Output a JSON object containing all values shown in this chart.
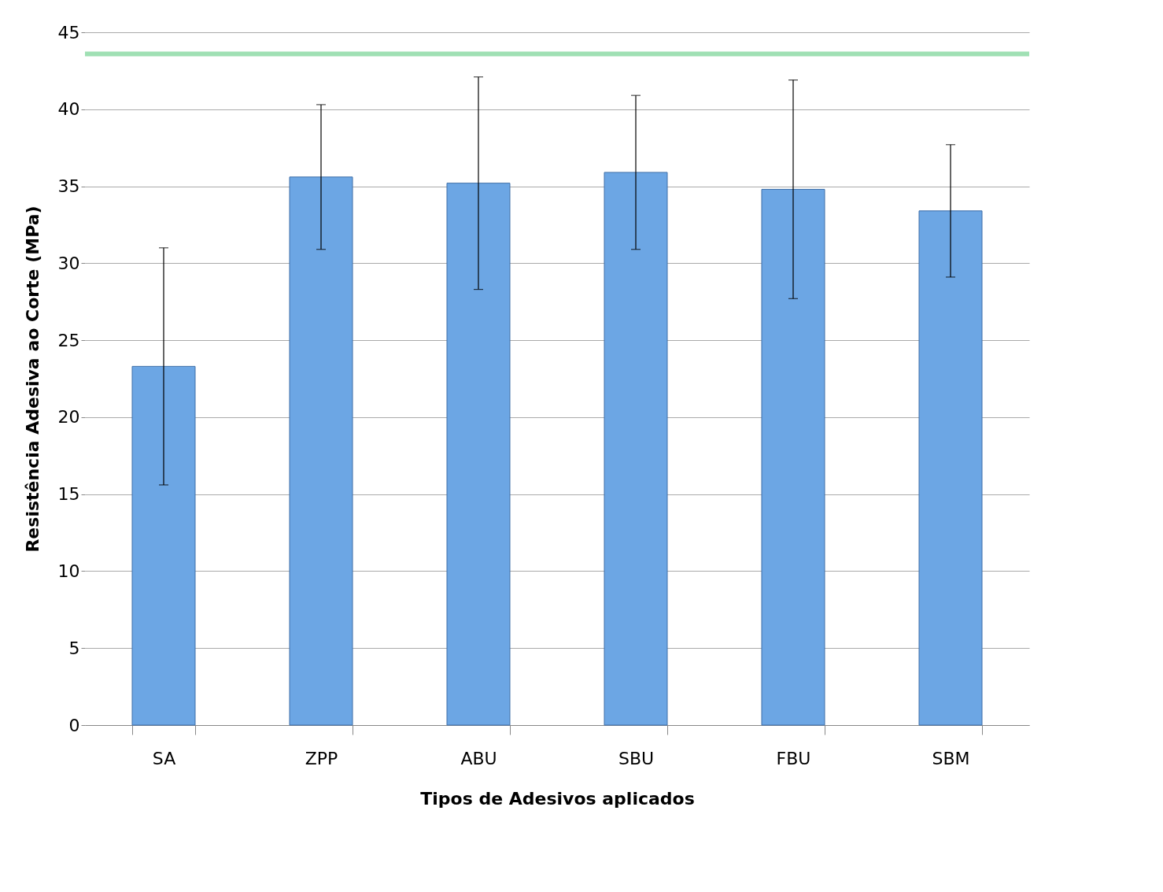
{
  "chart_data": {
    "type": "bar",
    "xlabel": "Tipos de Adesivos aplicados",
    "ylabel": "Resistência Adesiva ao Corte (MPa)",
    "categories": [
      "SA",
      "ZPP",
      "ABU",
      "SBU",
      "FBU",
      "SBM"
    ],
    "values": [
      23.3,
      35.6,
      35.2,
      35.9,
      34.8,
      33.4
    ],
    "errors": [
      7.7,
      4.7,
      6.9,
      5.0,
      7.1,
      4.3
    ],
    "color": "#6ca6e4",
    "ylim": [
      0,
      45
    ],
    "yticks": [
      0,
      5,
      10,
      15,
      20,
      25,
      30,
      35,
      40,
      45
    ],
    "grid": "y",
    "ref_lines": [
      {
        "axis": "y",
        "value": 43.6,
        "color": "#a0e0b4"
      }
    ]
  }
}
